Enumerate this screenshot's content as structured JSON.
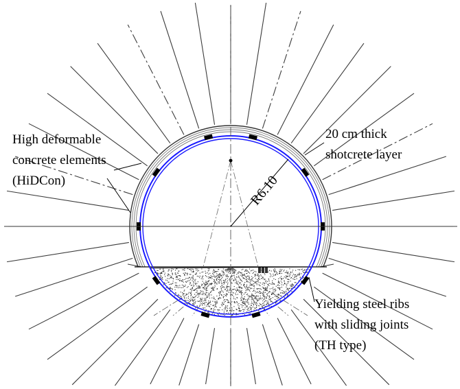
{
  "labels": {
    "hidcon": [
      "High deformable",
      "concrete elements",
      "(HiDCon)"
    ],
    "shotcrete": [
      "20 cm thick",
      "shotcrete layer"
    ],
    "ribs": [
      "Yielding steel ribs",
      "with sliding joints",
      "(TH type)"
    ],
    "radius": "R6.10"
  },
  "colors": {
    "steel_rib": "#1a1aff",
    "lines": "#3a3a3a",
    "joint": "#000000"
  }
}
